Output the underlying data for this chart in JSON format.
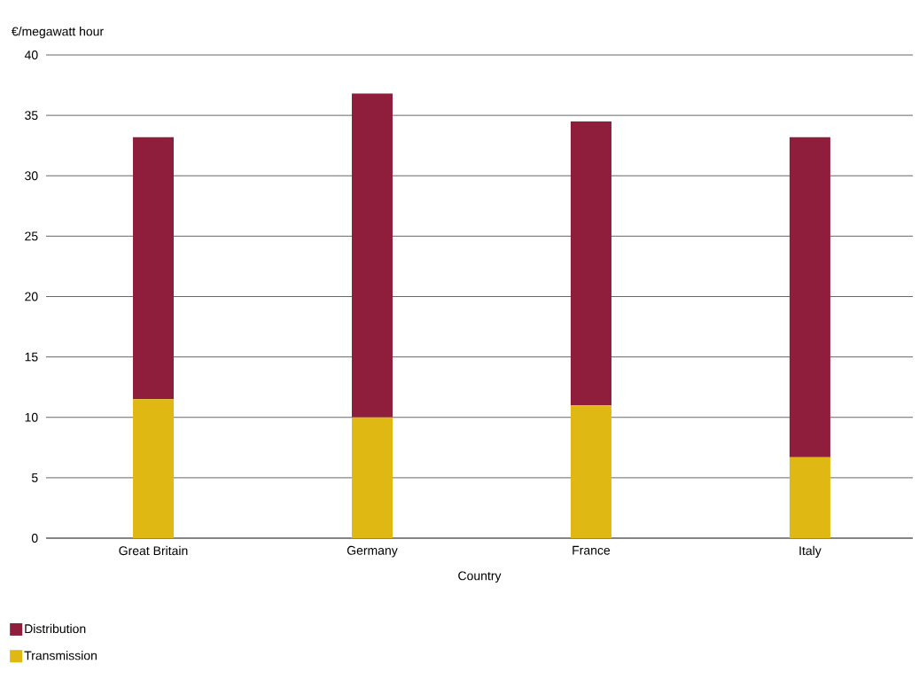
{
  "chart_data": {
    "type": "bar",
    "stacked": true,
    "xlabel": "Country",
    "ylabel": "€/megawatt hour",
    "categories": [
      "Great Britain",
      "Germany",
      "France",
      "Italy"
    ],
    "series": [
      {
        "name": "Transmission",
        "color": "#e0b814",
        "values": [
          11.5,
          10.0,
          11.0,
          6.7
        ]
      },
      {
        "name": "Distribution",
        "color": "#8f1d3c",
        "values": [
          21.7,
          26.8,
          23.5,
          26.5
        ]
      }
    ],
    "ylim": [
      0,
      40
    ],
    "yticks": [
      0,
      5,
      10,
      15,
      20,
      25,
      30,
      35,
      40
    ],
    "grid": "y",
    "legend": "bottom left"
  }
}
